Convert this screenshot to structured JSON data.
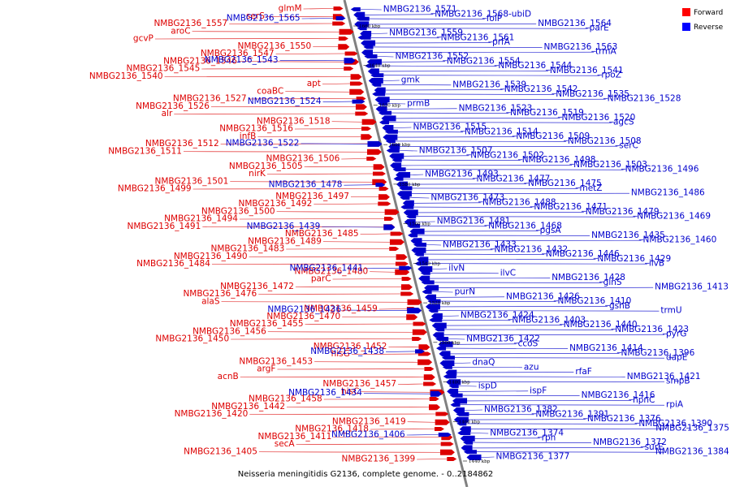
{
  "caption": "Neisseria meningitidis G2136, complete genome. - 0..2184862",
  "legend": [
    {
      "label": "Forward",
      "color": "#ff0000"
    },
    {
      "label": "Reverse",
      "color": "#0000ff"
    }
  ],
  "colors": {
    "forward": "#dd0000",
    "reverse": "#0000cc",
    "backbone": "#808080"
  },
  "ticks": [
    "1660 kbp",
    "1640 kbp",
    "1620 kbp",
    "1600 kbp",
    "1580 kbp",
    "1560 kbp",
    "1540 kbp",
    "1520 kbp",
    "1500 kbp",
    "1480 kbp",
    "1460 kbp",
    "1440 kbp"
  ],
  "forward_labels": [
    "glmM",
    "serS",
    "NMBG2136_1557",
    "aroC",
    "gcvP",
    "NMBG2136_1550",
    "NMBG2136_1547",
    "NMBG2136_1546",
    "NMBG2136_1545",
    "NMBG2136_1540",
    "apt",
    "coaBC",
    "NMBG2136_1527",
    "NMBG2136_1526",
    "alr",
    "NMBG2136_1518",
    "NMBG2136_1516",
    "infB",
    "NMBG2136_1512",
    "NMBG2136_1511",
    "NMBG2136_1506",
    "NMBG2136_1505",
    "nirK",
    "NMBG2136_1501",
    "NMBG2136_1499",
    "NMBG2136_1497",
    "NMBG2136_1492",
    "NMBG2136_1500",
    "NMBG2136_1494",
    "NMBG2136_1491",
    "NMBG2136_1485",
    "NMBG2136_1489",
    "NMBG2136_1483",
    "NMBG2136_1490",
    "NMBG2136_1484",
    "NMBG2136_1480",
    "parC",
    "NMBG2136_1472",
    "NMBG2136_1476",
    "alaS",
    "NMBG2136_1459",
    "NMBG2136_1470",
    "NMBG2136_1455",
    "NMBG2136_1456",
    "NMBG2136_1450",
    "NMBG2136_1452",
    "hisG",
    "NMBG2136_1453",
    "argF",
    "acnB",
    "NMBG2136_1457",
    "hisC",
    "NMBG2136_1458",
    "NMBG2136_1442",
    "NMBG2136_1420",
    "NMBG2136_1419",
    "NMBG2136_1418",
    "NMBG2136_1411",
    "secA",
    "NMBG2136_1405",
    "NMBG2136_1399"
  ],
  "reverse_left_labels": [
    "NMBG2136_1565",
    "NMBG2136_1543",
    "NMBG2136_1524",
    "NMBG2136_1522",
    "NMBG2136_1478",
    "NMBG2136_1439",
    "NMBG2136_1441",
    "NMBG2136_1436",
    "NMBG2136_1438",
    "NMBG2136_1434",
    "NMBG2136_1406"
  ],
  "reverse_right_labels": [
    "NMBG2136_1571",
    "NMBG2136_1568-ubiD",
    "folP",
    "NMBG2136_1564",
    "parE",
    "NMBG2136_1559",
    "NMBG2136_1561",
    "prfA",
    "NMBG2136_1563",
    "trmA",
    "NMBG2136_1552",
    "NMBG2136_1554",
    "NMBG2136_1544",
    "NMBG2136_1541",
    "rpoZ",
    "gmk",
    "NMBG2136_1539",
    "NMBG2136_1542",
    "NMBG2136_1535",
    "NMBG2136_1528",
    "prmB",
    "NMBG2136_1523",
    "NMBG2136_1519",
    "NMBG2136_1520",
    "agcS",
    "NMBG2136_1515",
    "NMBG2136_1514",
    "NMBG2136_1509",
    "NMBG2136_1508",
    "serC",
    "NMBG2136_1507",
    "NMBG2136_1502",
    "NMBG2136_1498",
    "NMBG2136_1503",
    "NMBG2136_1496",
    "NMBG2136_1493",
    "NMBG2136_1477",
    "NMBG2136_1475",
    "metZ",
    "NMBG2136_1486",
    "NMBG2136_1473",
    "NMBG2136_1488",
    "NMBG2136_1471",
    "NMBG2136_1479",
    "NMBG2136_1469",
    "NMBG2136_1481",
    "NMBG2136_1468",
    "pgsA",
    "NMBG2136_1435",
    "NMBG2136_1460",
    "NMBG2136_1433",
    "NMBG2136_1432",
    "NMBG2136_1446",
    "NMBG2136_1429",
    "ilvB",
    "ilvN",
    "ilvC",
    "NMBG2136_1428",
    "glnS",
    "NMBG2136_1413",
    "purN",
    "NMBG2136_1426",
    "NMBG2136_1410",
    "gshB",
    "trmU",
    "NMBG2136_1424",
    "NMBG2136_1403",
    "NMBG2136_1440",
    "NMBG2136_1423",
    "pyrG",
    "NMBG2136_1422",
    "ccoS",
    "NMBG2136_1414",
    "NMBG2136_1396",
    "dapE",
    "dnaQ",
    "azu",
    "rfaF",
    "NMBG2136_1421",
    "smpB",
    "ispD",
    "ispF",
    "NMBG2136_1416",
    "hpnC",
    "rpiA",
    "NMBG2136_1382",
    "NMBG2136_1391",
    "NMBG2136_1376",
    "NMBG2136_1390",
    "NMBG2136_1375",
    "NMBG2136_1374",
    "rph",
    "NMBG2136_1372",
    "surE",
    "NMBG2136_1384",
    "NMBG2136_1377"
  ]
}
